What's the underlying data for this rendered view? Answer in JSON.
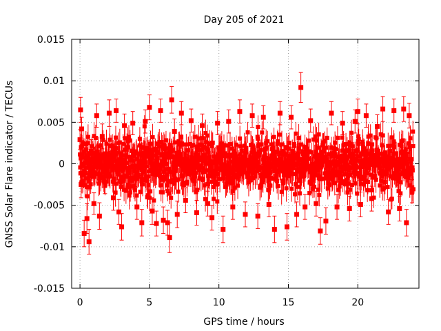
{
  "chart_data": {
    "type": "scatter",
    "title": "Day 205 of 2021",
    "xlabel": "GPS time / hours",
    "ylabel": "GNSS Solar Flare indicator / TECUs",
    "xlim": [
      -0.6,
      24.4
    ],
    "ylim": [
      -0.015,
      0.015
    ],
    "x_ticks": [
      0,
      5,
      10,
      15,
      20
    ],
    "x_tick_labels": [
      "0",
      "5",
      "10",
      "15",
      "20"
    ],
    "y_ticks": [
      -0.015,
      -0.01,
      -0.005,
      0,
      0.005,
      0.01,
      0.015
    ],
    "y_tick_labels": [
      "-0.015",
      "-0.01",
      "-0.005",
      "0",
      "0.005",
      "0.01",
      "0.015"
    ],
    "grid": true,
    "legend": "none",
    "series": [
      {
        "color": "#ff0000",
        "marker": "square",
        "error_bars": true,
        "points": [
          [
            0.0,
            0.0029,
            0.0012
          ],
          [
            0.04,
            0.0065,
            0.0015
          ],
          [
            0.08,
            -0.0025,
            0.0016
          ],
          [
            0.12,
            0.0042,
            0.0014
          ],
          [
            0.3,
            -0.0084,
            0.0016
          ],
          [
            0.5,
            -0.0066,
            0.0018
          ],
          [
            0.65,
            -0.0094,
            0.0015
          ],
          [
            0.8,
            0.0015,
            0.0014
          ],
          [
            1.0,
            -0.0048,
            0.0013
          ],
          [
            1.2,
            0.0058,
            0.0014
          ],
          [
            1.4,
            -0.0063,
            0.0016
          ],
          [
            1.6,
            0.0033,
            0.0015
          ],
          [
            1.8,
            -0.0022,
            0.0014
          ],
          [
            2.1,
            0.0061,
            0.0016
          ],
          [
            2.4,
            -0.0041,
            0.0015
          ],
          [
            2.6,
            0.0064,
            0.0014
          ],
          [
            2.8,
            -0.0058,
            0.0015
          ],
          [
            3.0,
            -0.0076,
            0.0016
          ],
          [
            3.2,
            0.0046,
            0.0014
          ],
          [
            3.5,
            -0.0011,
            0.0013
          ],
          [
            3.8,
            0.0049,
            0.0014
          ],
          [
            4.1,
            -0.0052,
            0.0015
          ],
          [
            4.45,
            -0.0071,
            0.0016
          ],
          [
            4.7,
            0.0051,
            0.0014
          ],
          [
            5.0,
            0.0068,
            0.0015
          ],
          [
            5.2,
            -0.0057,
            0.0016
          ],
          [
            5.5,
            -0.0072,
            0.0015
          ],
          [
            5.8,
            0.0064,
            0.0014
          ],
          [
            6.0,
            -0.0068,
            0.0016
          ],
          [
            6.3,
            -0.0071,
            0.0015
          ],
          [
            6.45,
            -0.0089,
            0.0018
          ],
          [
            6.6,
            0.0077,
            0.0016
          ],
          [
            6.8,
            0.0039,
            0.0015
          ],
          [
            7.0,
            -0.0061,
            0.0016
          ],
          [
            7.3,
            0.0061,
            0.0014
          ],
          [
            7.6,
            -0.0044,
            0.0015
          ],
          [
            8.0,
            0.0052,
            0.0014
          ],
          [
            8.4,
            -0.0059,
            0.0015
          ],
          [
            8.8,
            0.0046,
            0.0014
          ],
          [
            9.2,
            -0.0048,
            0.0015
          ],
          [
            9.5,
            -0.0065,
            0.0015
          ],
          [
            9.9,
            0.0049,
            0.0014
          ],
          [
            10.3,
            -0.0079,
            0.0016
          ],
          [
            10.7,
            0.0051,
            0.0014
          ],
          [
            11.0,
            -0.0052,
            0.0015
          ],
          [
            11.5,
            0.0063,
            0.0014
          ],
          [
            11.9,
            -0.0061,
            0.0015
          ],
          [
            12.4,
            0.0058,
            0.0014
          ],
          [
            12.8,
            -0.0063,
            0.0015
          ],
          [
            13.2,
            0.0056,
            0.0014
          ],
          [
            13.6,
            -0.0049,
            0.0015
          ],
          [
            14.0,
            -0.0079,
            0.0016
          ],
          [
            14.4,
            0.0061,
            0.0014
          ],
          [
            14.9,
            -0.0076,
            0.0016
          ],
          [
            15.2,
            0.0056,
            0.0014
          ],
          [
            15.6,
            -0.0061,
            0.0015
          ],
          [
            15.9,
            0.0092,
            0.0018
          ],
          [
            16.2,
            -0.0052,
            0.0015
          ],
          [
            16.6,
            0.0052,
            0.0014
          ],
          [
            17.0,
            -0.0048,
            0.0015
          ],
          [
            17.3,
            -0.0081,
            0.0016
          ],
          [
            17.7,
            -0.0069,
            0.0016
          ],
          [
            18.1,
            0.0061,
            0.0014
          ],
          [
            18.5,
            -0.0052,
            0.0015
          ],
          [
            18.9,
            0.0049,
            0.0014
          ],
          [
            19.4,
            -0.0054,
            0.0015
          ],
          [
            19.8,
            0.0051,
            0.0014
          ],
          [
            20.0,
            0.0063,
            0.0015
          ],
          [
            20.2,
            -0.0049,
            0.0015
          ],
          [
            20.6,
            0.0058,
            0.0014
          ],
          [
            21.0,
            -0.0042,
            0.0015
          ],
          [
            21.4,
            0.0045,
            0.0014
          ],
          [
            21.8,
            0.0066,
            0.0015
          ],
          [
            22.2,
            -0.0058,
            0.0015
          ],
          [
            22.6,
            0.0064,
            0.0014
          ],
          [
            23.0,
            -0.0054,
            0.0015
          ],
          [
            23.3,
            0.0066,
            0.0015
          ],
          [
            23.5,
            -0.0071,
            0.0016
          ],
          [
            23.7,
            0.0058,
            0.0015
          ],
          [
            23.9,
            -0.0033,
            0.0014
          ]
        ]
      }
    ]
  }
}
